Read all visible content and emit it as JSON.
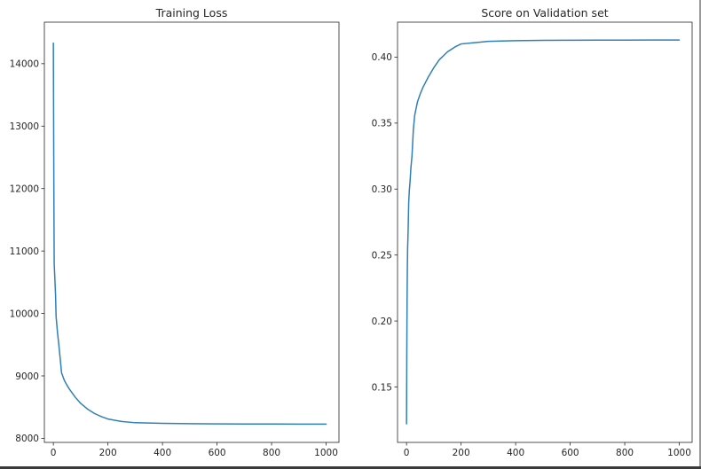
{
  "chart_data": [
    {
      "type": "line",
      "title": "Training Loss",
      "xlabel": "",
      "ylabel": "",
      "xlim": [
        -33,
        1047
      ],
      "ylim": [
        7935,
        14665
      ],
      "xticks": [
        0,
        200,
        400,
        600,
        800,
        1000
      ],
      "xtick_labels": [
        "0",
        "200",
        "400",
        "600",
        "800",
        "1000"
      ],
      "yticks": [
        8000,
        9000,
        10000,
        11000,
        12000,
        13000,
        14000
      ],
      "ytick_labels": [
        "8000",
        "9000",
        "10000",
        "11000",
        "12000",
        "13000",
        "14000"
      ],
      "grid": false,
      "series": [
        {
          "color": "#2f7fb8",
          "x": [
            0,
            1,
            2,
            3,
            5,
            8,
            10,
            15,
            20,
            25,
            30,
            40,
            50,
            60,
            80,
            100,
            125,
            150,
            175,
            200,
            250,
            300,
            400,
            500,
            600,
            700,
            800,
            900,
            1000
          ],
          "y": [
            14330,
            13000,
            11800,
            10800,
            10600,
            10300,
            9950,
            9700,
            9500,
            9280,
            9050,
            8930,
            8850,
            8780,
            8660,
            8560,
            8470,
            8400,
            8350,
            8310,
            8270,
            8250,
            8240,
            8235,
            8232,
            8230,
            8229,
            8228,
            8228
          ]
        }
      ]
    },
    {
      "type": "line",
      "title": "Score on Validation set",
      "xlabel": "",
      "ylabel": "",
      "xlim": [
        -33,
        1047
      ],
      "ylim": [
        0.108,
        0.4265
      ],
      "xticks": [
        0,
        200,
        400,
        600,
        800,
        1000
      ],
      "xtick_labels": [
        "0",
        "200",
        "400",
        "600",
        "800",
        "1000"
      ],
      "yticks": [
        0.15,
        0.2,
        0.25,
        0.3,
        0.35,
        0.4
      ],
      "ytick_labels": [
        "0.15",
        "0.20",
        "0.25",
        "0.30",
        "0.35",
        "0.40"
      ],
      "grid": false,
      "series": [
        {
          "color": "#2f7fb8",
          "x": [
            0,
            1,
            2,
            3,
            4,
            5,
            6,
            8,
            10,
            13,
            16,
            20,
            25,
            30,
            40,
            50,
            60,
            70,
            80,
            100,
            120,
            150,
            180,
            200,
            250,
            300,
            400,
            500,
            600,
            700,
            800,
            900,
            1000
          ],
          "y": [
            0.122,
            0.175,
            0.215,
            0.24,
            0.255,
            0.262,
            0.27,
            0.29,
            0.298,
            0.306,
            0.316,
            0.325,
            0.345,
            0.356,
            0.366,
            0.372,
            0.377,
            0.381,
            0.385,
            0.392,
            0.398,
            0.404,
            0.408,
            0.41,
            0.411,
            0.412,
            0.4125,
            0.4127,
            0.4128,
            0.4129,
            0.4129,
            0.413,
            0.413
          ]
        }
      ]
    }
  ]
}
